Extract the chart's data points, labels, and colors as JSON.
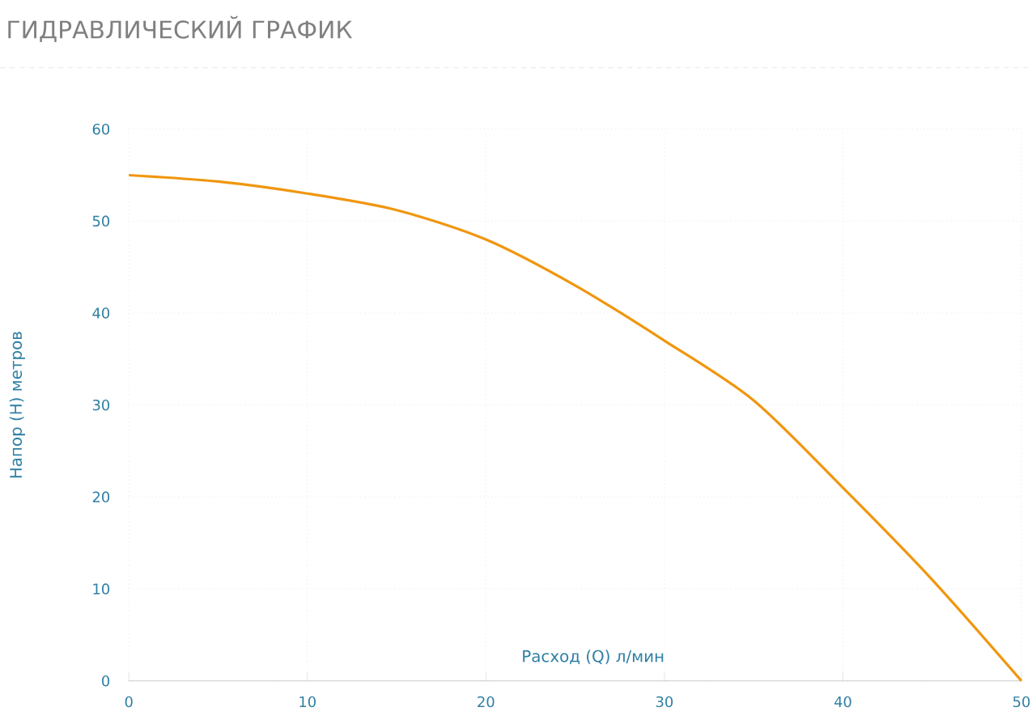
{
  "chart_data": {
    "type": "line",
    "title": "ГИДРАВЛИЧЕСКИЙ ГРАФИК",
    "xlabel": "Расход (Q) л/мин",
    "ylabel": "Напор (H) метров",
    "x": [
      0,
      5,
      10,
      15,
      20,
      25,
      30,
      35,
      40,
      45,
      50
    ],
    "series": [
      {
        "color": "#f0960e",
        "values": [
          55,
          54.3,
          53,
          51.2,
          48,
          43,
          37,
          30.5,
          21,
          11,
          0
        ]
      }
    ],
    "xlim": [
      0,
      50
    ],
    "ylim": [
      0,
      60
    ],
    "xticks": [
      0,
      10,
      20,
      30,
      40,
      50
    ],
    "yticks": [
      0,
      10,
      20,
      30,
      40,
      50,
      60
    ],
    "grid": true,
    "marker": "none",
    "line_style": "solid"
  }
}
